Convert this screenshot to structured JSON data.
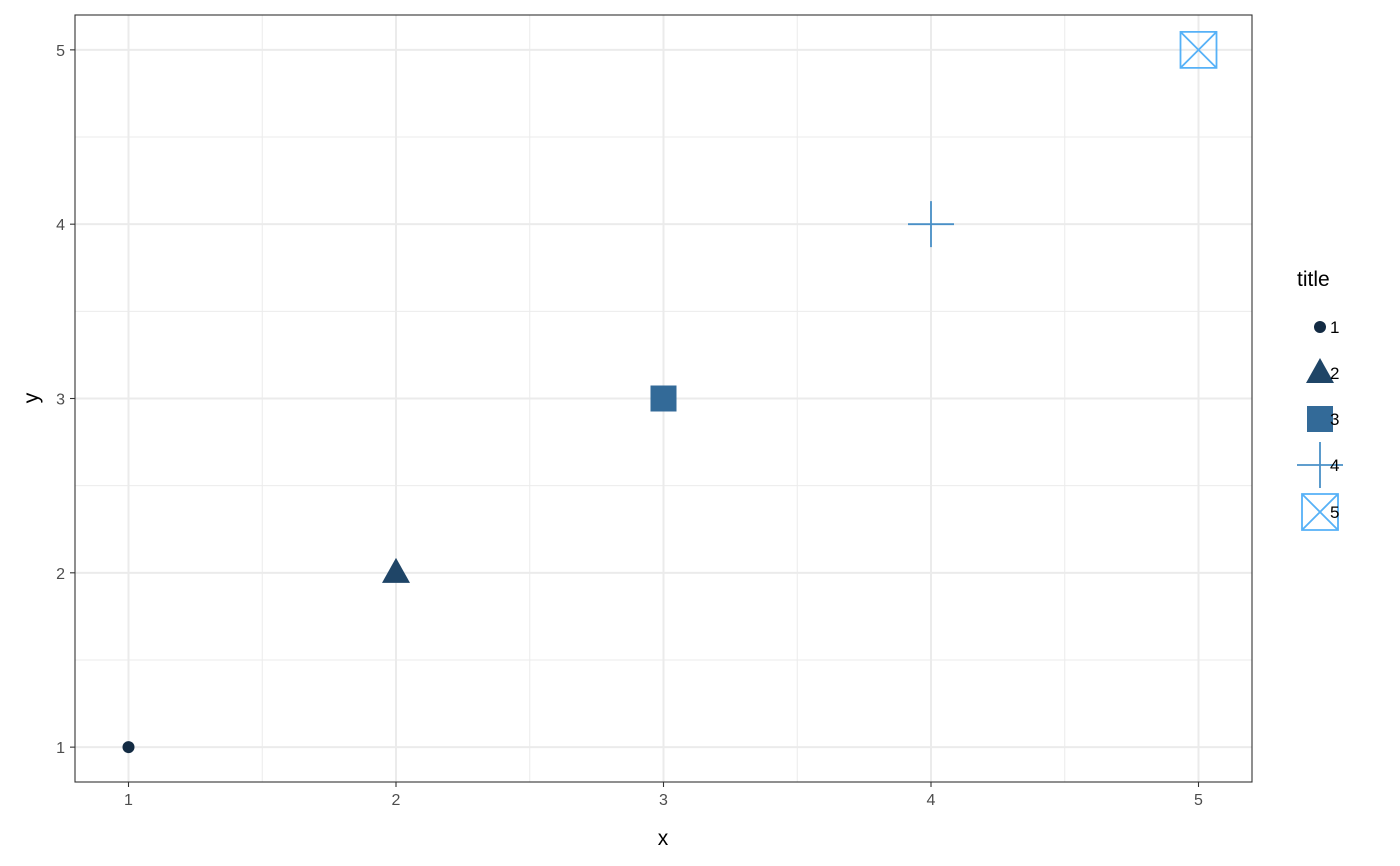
{
  "chart_data": {
    "type": "scatter",
    "title": "",
    "xlabel": "x",
    "ylabel": "y",
    "xlim": [
      0.8,
      5.2
    ],
    "ylim": [
      0.8,
      5.2
    ],
    "xticks": [
      "1",
      "2",
      "3",
      "4",
      "5"
    ],
    "yticks": [
      "1",
      "2",
      "3",
      "4",
      "5"
    ],
    "grid": true,
    "legend": {
      "title": "title",
      "placement": "right",
      "entries": [
        "1",
        "2",
        "3",
        "4",
        "5"
      ]
    },
    "points": [
      {
        "x": 1,
        "y": 1,
        "group": "1",
        "shape": "circle",
        "color": "#132B43"
      },
      {
        "x": 2,
        "y": 2,
        "group": "2",
        "shape": "triangle",
        "color": "#1F4567"
      },
      {
        "x": 3,
        "y": 3,
        "group": "3",
        "shape": "square",
        "color": "#336A98"
      },
      {
        "x": 4,
        "y": 4,
        "group": "4",
        "shape": "plus",
        "color": "#4990C7"
      },
      {
        "x": 5,
        "y": 5,
        "group": "5",
        "shape": "square-cross",
        "color": "#56B1F7"
      }
    ]
  }
}
